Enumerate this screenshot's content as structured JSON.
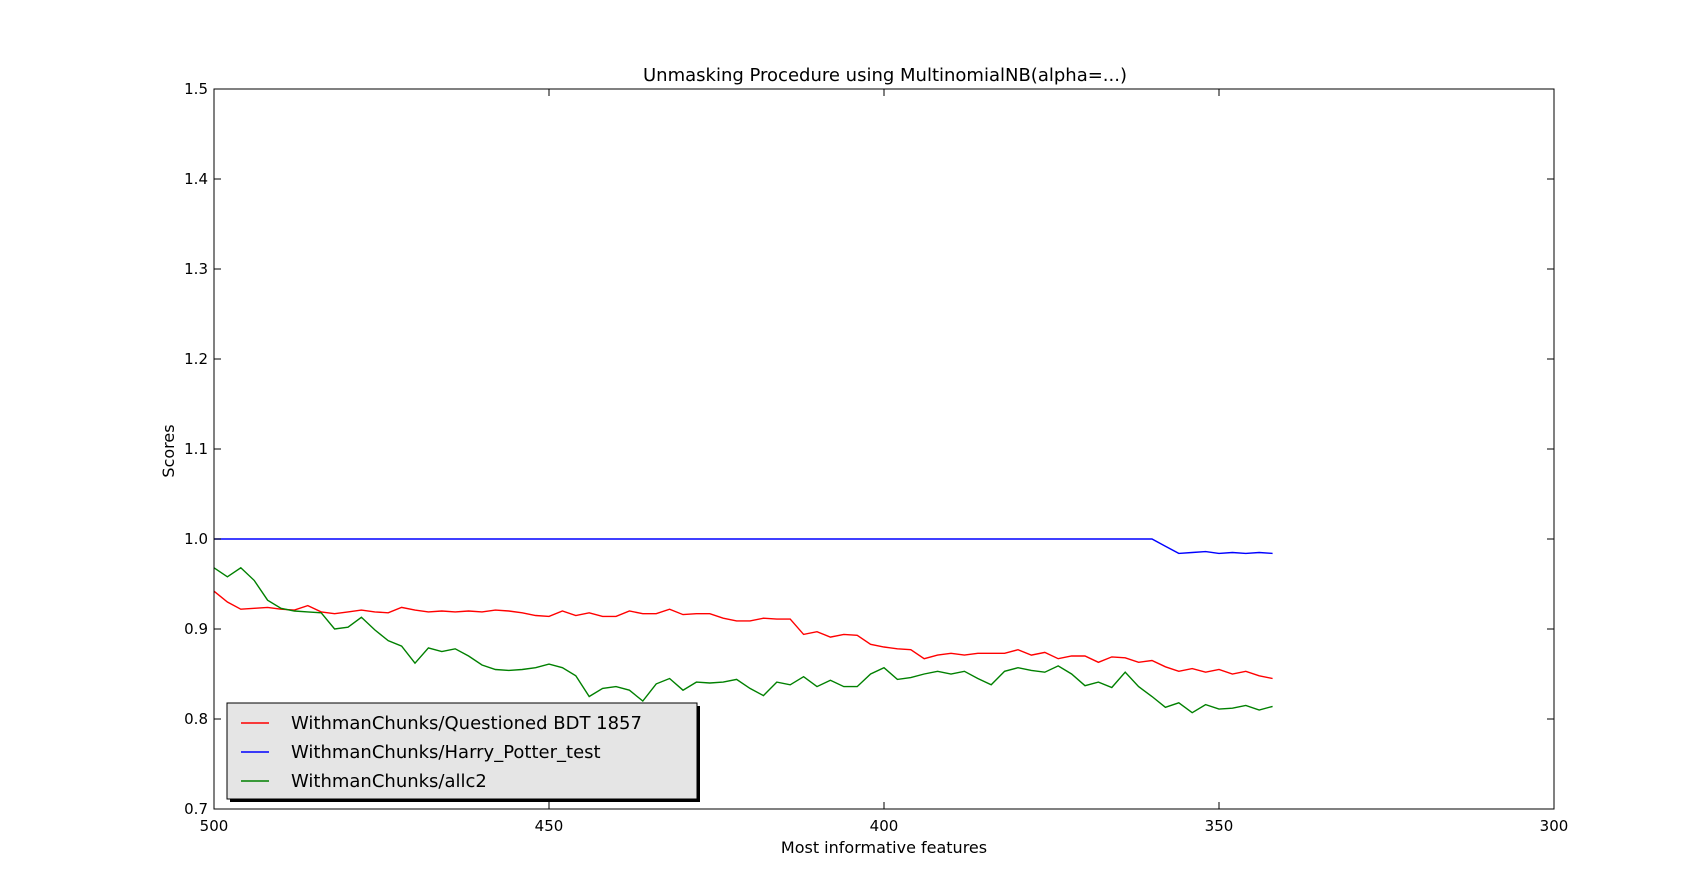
{
  "chart_data": {
    "type": "line",
    "title": "Unmasking Procedure using MultinomialNB(alpha=...)",
    "xlabel": "Most informative features",
    "ylabel": "Scores",
    "xlim": [
      500,
      300
    ],
    "ylim": [
      0.7,
      1.5
    ],
    "x_ticks": [
      "500",
      "450",
      "400",
      "350",
      "300"
    ],
    "y_ticks": [
      "0.7",
      "0.8",
      "0.9",
      "1.0",
      "1.1",
      "1.2",
      "1.3",
      "1.4",
      "1.5"
    ],
    "x_tick_values": [
      500,
      450,
      400,
      350,
      300
    ],
    "y_tick_values": [
      0.7,
      0.8,
      0.9,
      1.0,
      1.1,
      1.2,
      1.3,
      1.4,
      1.5
    ],
    "grid": false,
    "legend_position": "lower-left",
    "x": [
      500,
      498,
      496,
      494,
      492,
      490,
      488,
      486,
      484,
      482,
      480,
      478,
      476,
      474,
      472,
      470,
      468,
      466,
      464,
      462,
      460,
      458,
      456,
      454,
      452,
      450,
      448,
      446,
      444,
      442,
      440,
      438,
      436,
      434,
      432,
      430,
      428,
      426,
      424,
      422,
      420,
      418,
      416,
      414,
      412,
      410,
      408,
      406,
      404,
      402,
      400,
      398,
      396,
      394,
      392,
      390,
      388,
      386,
      384,
      382,
      380,
      378,
      376,
      374,
      372,
      370,
      368,
      366,
      364,
      362,
      360,
      358,
      356,
      354,
      352,
      350,
      348,
      346,
      344,
      342
    ],
    "series": [
      {
        "name": "WithmanChunks/Questioned BDT 1857",
        "color": "#ff0000",
        "values": [
          0.942,
          0.93,
          0.922,
          0.923,
          0.924,
          0.922,
          0.921,
          0.926,
          0.919,
          0.917,
          0.919,
          0.921,
          0.919,
          0.918,
          0.924,
          0.921,
          0.919,
          0.92,
          0.919,
          0.92,
          0.919,
          0.921,
          0.92,
          0.918,
          0.915,
          0.914,
          0.92,
          0.915,
          0.918,
          0.914,
          0.914,
          0.92,
          0.917,
          0.917,
          0.922,
          0.916,
          0.917,
          0.917,
          0.912,
          0.909,
          0.909,
          0.912,
          0.911,
          0.911,
          0.894,
          0.897,
          0.891,
          0.894,
          0.893,
          0.883,
          0.88,
          0.878,
          0.877,
          0.867,
          0.871,
          0.873,
          0.871,
          0.873,
          0.873,
          0.873,
          0.877,
          0.871,
          0.874,
          0.867,
          0.87,
          0.87,
          0.863,
          0.869,
          0.868,
          0.863,
          0.865,
          0.858,
          0.853,
          0.856,
          0.852,
          0.855,
          0.85,
          0.853,
          0.848,
          0.845
        ]
      },
      {
        "name": "WithmanChunks/Harry_Potter_test",
        "color": "#0000ff",
        "values": [
          1.0,
          1.0,
          1.0,
          1.0,
          1.0,
          1.0,
          1.0,
          1.0,
          1.0,
          1.0,
          1.0,
          1.0,
          1.0,
          1.0,
          1.0,
          1.0,
          1.0,
          1.0,
          1.0,
          1.0,
          1.0,
          1.0,
          1.0,
          1.0,
          1.0,
          1.0,
          1.0,
          1.0,
          1.0,
          1.0,
          1.0,
          1.0,
          1.0,
          1.0,
          1.0,
          1.0,
          1.0,
          1.0,
          1.0,
          1.0,
          1.0,
          1.0,
          1.0,
          1.0,
          1.0,
          1.0,
          1.0,
          1.0,
          1.0,
          1.0,
          1.0,
          1.0,
          1.0,
          1.0,
          1.0,
          1.0,
          1.0,
          1.0,
          1.0,
          1.0,
          1.0,
          1.0,
          1.0,
          1.0,
          1.0,
          1.0,
          1.0,
          1.0,
          1.0,
          1.0,
          1.0,
          0.992,
          0.984,
          0.985,
          0.986,
          0.984,
          0.985,
          0.984,
          0.985,
          0.984
        ]
      },
      {
        "name": "WithmanChunks/allc2",
        "color": "#008000",
        "values": [
          0.968,
          0.958,
          0.968,
          0.954,
          0.932,
          0.923,
          0.92,
          0.919,
          0.918,
          0.9,
          0.902,
          0.913,
          0.899,
          0.887,
          0.881,
          0.862,
          0.879,
          0.875,
          0.878,
          0.87,
          0.86,
          0.855,
          0.854,
          0.855,
          0.857,
          0.861,
          0.857,
          0.848,
          0.825,
          0.834,
          0.836,
          0.832,
          0.82,
          0.839,
          0.845,
          0.832,
          0.841,
          0.84,
          0.841,
          0.844,
          0.834,
          0.826,
          0.841,
          0.838,
          0.847,
          0.836,
          0.843,
          0.836,
          0.836,
          0.85,
          0.857,
          0.844,
          0.846,
          0.85,
          0.853,
          0.85,
          0.853,
          0.845,
          0.838,
          0.853,
          0.857,
          0.854,
          0.852,
          0.859,
          0.85,
          0.837,
          0.841,
          0.835,
          0.852,
          0.836,
          0.825,
          0.813,
          0.818,
          0.807,
          0.816,
          0.811,
          0.812,
          0.815,
          0.81,
          0.814
        ]
      }
    ]
  }
}
